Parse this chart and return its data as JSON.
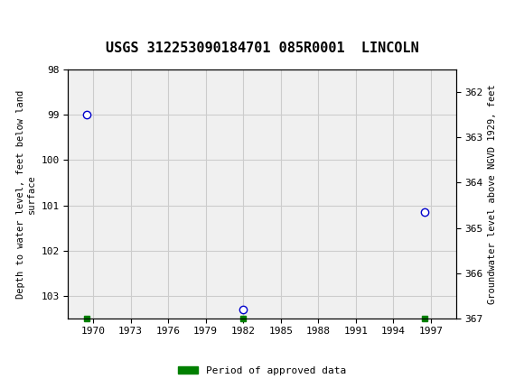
{
  "title": "USGS 312253090184701 085R0001  LINCOLN",
  "header_bg_color": "#006847",
  "plot_bg_color": "#f0f0f0",
  "grid_color": "#cccccc",
  "data_points": [
    {
      "year": 1969.5,
      "depth": 99.0
    },
    {
      "year": 1982.0,
      "depth": 103.3
    },
    {
      "year": 1996.5,
      "depth": 101.15
    }
  ],
  "approved_data_markers": [
    {
      "year": 1969.5
    },
    {
      "year": 1982.0
    },
    {
      "year": 1996.5
    }
  ],
  "marker_color": "#0000cc",
  "approved_color": "#008000",
  "xlim": [
    1968,
    1999
  ],
  "xticks": [
    1970,
    1973,
    1976,
    1979,
    1982,
    1985,
    1988,
    1991,
    1994,
    1997
  ],
  "ylim_left": [
    98.0,
    103.5
  ],
  "ylim_right": [
    361.5,
    367.0
  ],
  "yticks_left": [
    98.0,
    99.0,
    100.0,
    101.0,
    102.0,
    103.0
  ],
  "yticks_right": [
    362.0,
    363.0,
    364.0,
    365.0,
    366.0,
    367.0
  ],
  "ylabel_left": "Depth to water level, feet below land\nsurface",
  "ylabel_right": "Groundwater level above NGVD 1929, feet",
  "legend_label": "Period of approved data",
  "font_family": "monospace"
}
